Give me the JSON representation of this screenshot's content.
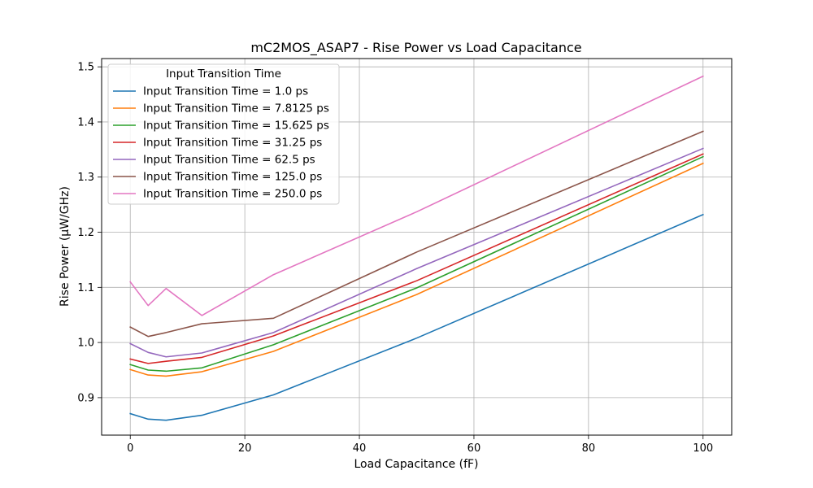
{
  "chart_data": {
    "type": "line",
    "title": "mC2MOS_ASAP7 - Rise Power vs Load Capacitance",
    "xlabel": "Load Capacitance (fF)",
    "ylabel": "Rise Power (µW/GHz)",
    "xlim": [
      -5,
      105
    ],
    "ylim": [
      0.832,
      1.515
    ],
    "xticks": [
      0,
      20,
      40,
      60,
      80,
      100
    ],
    "xtick_labels": [
      "0",
      "20",
      "40",
      "60",
      "80",
      "100"
    ],
    "yticks": [
      0.9,
      1.0,
      1.1,
      1.2,
      1.3,
      1.4,
      1.5
    ],
    "ytick_labels": [
      "0.9",
      "1.0",
      "1.1",
      "1.2",
      "1.3",
      "1.4",
      "1.5"
    ],
    "grid": true,
    "legend": {
      "title": "Input Transition Time",
      "placement": "top-left"
    },
    "x": [
      0,
      3.125,
      6.25,
      12.5,
      25,
      50,
      100
    ],
    "series": [
      {
        "name": "Input Transition Time = 1.0 ps",
        "color": "#1f77b4",
        "values": [
          0.871,
          0.861,
          0.859,
          0.868,
          0.905,
          1.008,
          1.232
        ]
      },
      {
        "name": "Input Transition Time = 7.8125 ps",
        "color": "#ff7f0e",
        "values": [
          0.951,
          0.941,
          0.939,
          0.947,
          0.984,
          1.087,
          1.325
        ]
      },
      {
        "name": "Input Transition Time = 15.625 ps",
        "color": "#2ca02c",
        "values": [
          0.96,
          0.95,
          0.948,
          0.954,
          0.996,
          1.099,
          1.337
        ]
      },
      {
        "name": "Input Transition Time = 31.25 ps",
        "color": "#d62728",
        "values": [
          0.97,
          0.962,
          0.966,
          0.973,
          1.012,
          1.112,
          1.342
        ]
      },
      {
        "name": "Input Transition Time = 62.5 ps",
        "color": "#9467bd",
        "values": [
          0.998,
          0.982,
          0.974,
          0.981,
          1.018,
          1.134,
          1.352
        ]
      },
      {
        "name": "Input Transition Time = 125.0 ps",
        "color": "#8c564b",
        "values": [
          1.028,
          1.011,
          1.018,
          1.034,
          1.044,
          1.164,
          1.383
        ]
      },
      {
        "name": "Input Transition Time = 250.0 ps",
        "color": "#e377c2",
        "values": [
          1.11,
          1.067,
          1.098,
          1.049,
          1.123,
          1.237,
          1.483
        ]
      }
    ]
  }
}
